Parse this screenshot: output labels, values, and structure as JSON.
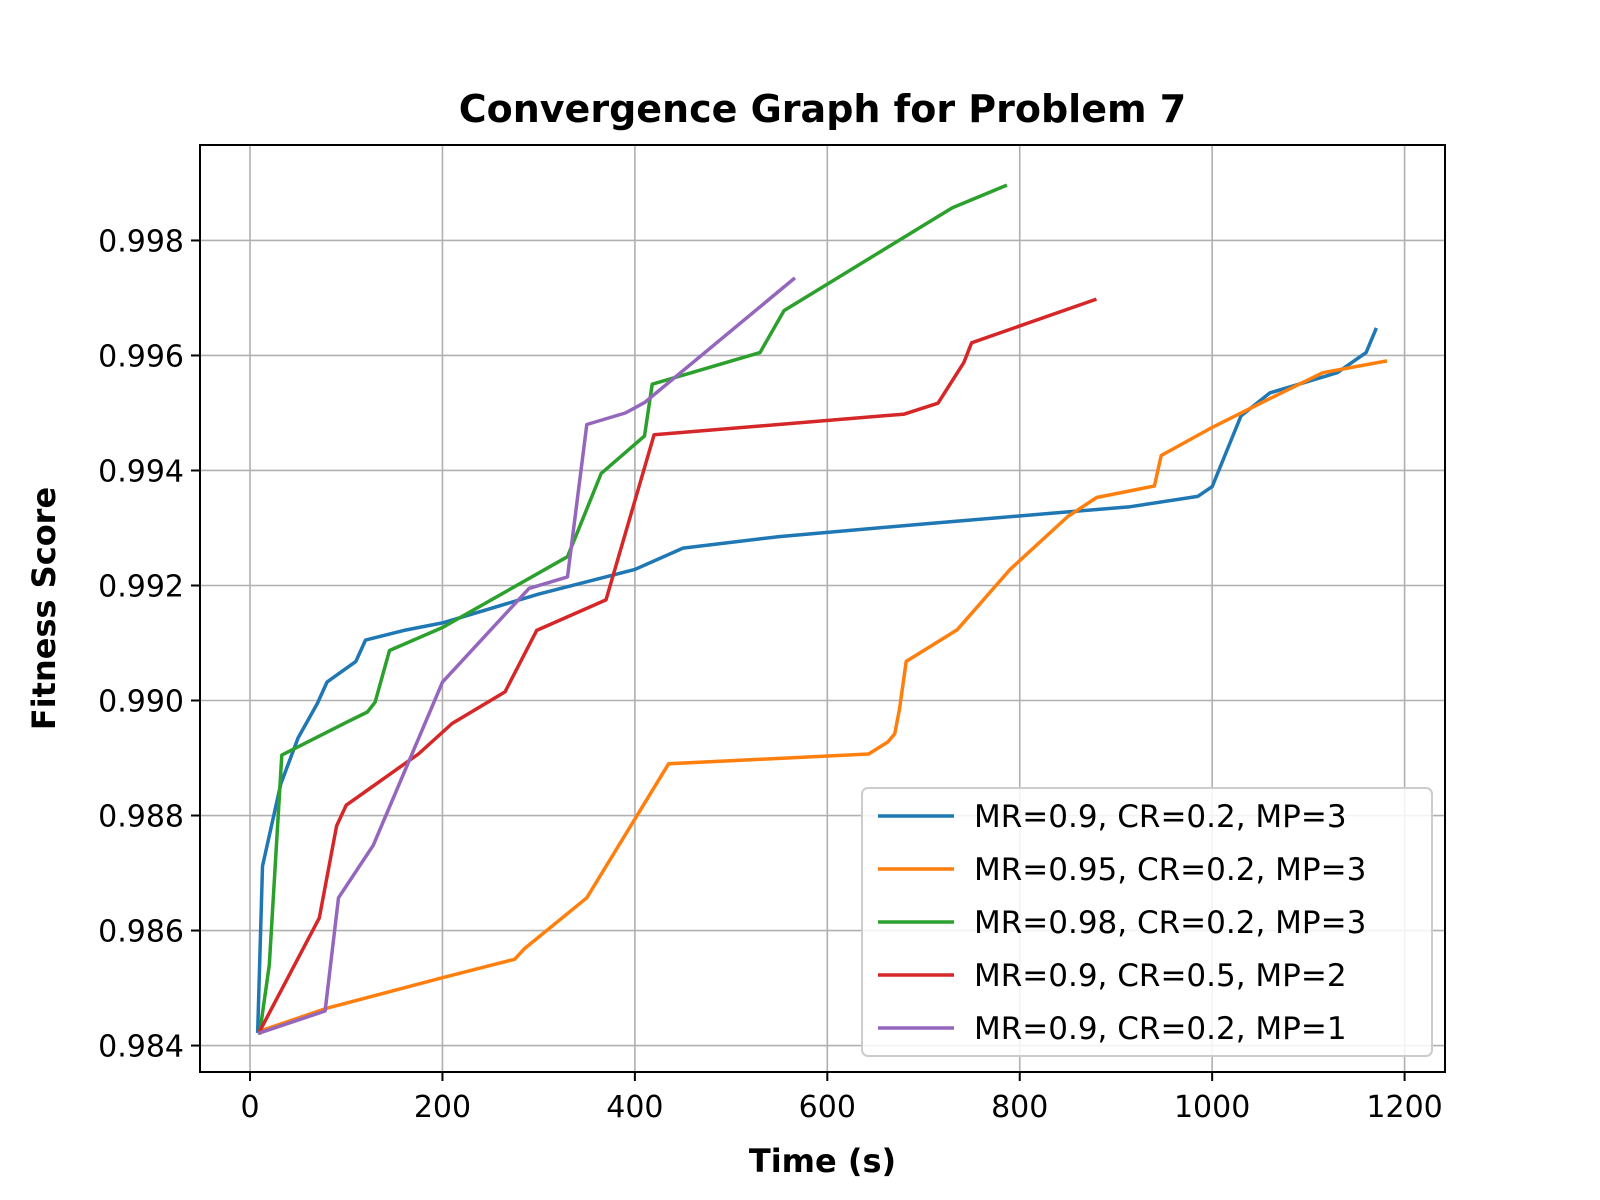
{
  "chart_data": {
    "type": "line",
    "title": "Convergence Graph for Problem 7",
    "xlabel": "Time (s)",
    "ylabel": "Fitness Score",
    "xlim": [
      -52,
      1242
    ],
    "ylim": [
      0.98354,
      0.99966
    ],
    "xticks": [
      0,
      200,
      400,
      600,
      800,
      1000,
      1200
    ],
    "xtick_labels": [
      "0",
      "200",
      "400",
      "600",
      "800",
      "1000",
      "1200"
    ],
    "yticks": [
      0.984,
      0.986,
      0.988,
      0.99,
      0.992,
      0.994,
      0.996,
      0.998
    ],
    "ytick_labels": [
      "0.984",
      "0.986",
      "0.988",
      "0.990",
      "0.992",
      "0.994",
      "0.996",
      "0.998"
    ],
    "grid": true,
    "legend_position": "lower-right",
    "series": [
      {
        "name": "MR=0.9, CR=0.2, MP=3",
        "color": "#1f77b4",
        "x": [
          8,
          13,
          20,
          32,
          50,
          70,
          80,
          110,
          120,
          160,
          200,
          300,
          400,
          450,
          550,
          700,
          850,
          915,
          985,
          1000,
          1030,
          1060,
          1130,
          1160,
          1170
        ],
        "y": [
          0.98425,
          0.98712,
          0.98765,
          0.98855,
          0.98935,
          0.98995,
          0.99032,
          0.99068,
          0.99105,
          0.99122,
          0.99135,
          0.99185,
          0.99228,
          0.99265,
          0.99285,
          0.99307,
          0.99328,
          0.99337,
          0.99355,
          0.99372,
          0.99495,
          0.99535,
          0.9957,
          0.99605,
          0.99645
        ]
      },
      {
        "name": "MR=0.95, CR=0.2, MP=3",
        "color": "#ff7f0e",
        "x": [
          10,
          80,
          200,
          275,
          285,
          350,
          435,
          643,
          663,
          670,
          675,
          682,
          735,
          790,
          850,
          880,
          940,
          947,
          1000,
          1060,
          1115,
          1180
        ],
        "y": [
          0.98425,
          0.98465,
          0.98518,
          0.9855,
          0.98568,
          0.98657,
          0.9889,
          0.98907,
          0.98928,
          0.98942,
          0.98985,
          0.99068,
          0.99123,
          0.99228,
          0.9932,
          0.99353,
          0.99373,
          0.99426,
          0.99475,
          0.99525,
          0.9957,
          0.9959
        ]
      },
      {
        "name": "MR=0.98, CR=0.2, MP=3",
        "color": "#2ca02c",
        "x": [
          10,
          20,
          33,
          100,
          122,
          130,
          145,
          200,
          330,
          365,
          410,
          418,
          530,
          555,
          730,
          785
        ],
        "y": [
          0.98422,
          0.9854,
          0.98905,
          0.98962,
          0.9898,
          0.98997,
          0.99087,
          0.99127,
          0.9925,
          0.99395,
          0.9946,
          0.9955,
          0.99605,
          0.99678,
          0.99857,
          0.99895
        ]
      },
      {
        "name": "MR=0.9, CR=0.5, MP=2",
        "color": "#d62728",
        "x": [
          10,
          72,
          90,
          100,
          175,
          210,
          265,
          298,
          370,
          420,
          680,
          715,
          742,
          750,
          878
        ],
        "y": [
          0.98425,
          0.98622,
          0.98782,
          0.98818,
          0.98907,
          0.9896,
          0.99015,
          0.99122,
          0.99175,
          0.99462,
          0.99498,
          0.99517,
          0.99588,
          0.99622,
          0.99697
        ]
      },
      {
        "name": "MR=0.9, CR=0.2, MP=1",
        "color": "#9467bd",
        "x": [
          10,
          78,
          92,
          128,
          200,
          290,
          330,
          350,
          390,
          410,
          565
        ],
        "y": [
          0.98422,
          0.9846,
          0.98657,
          0.98748,
          0.99032,
          0.99195,
          0.99215,
          0.9948,
          0.995,
          0.99518,
          0.99733
        ]
      }
    ]
  }
}
